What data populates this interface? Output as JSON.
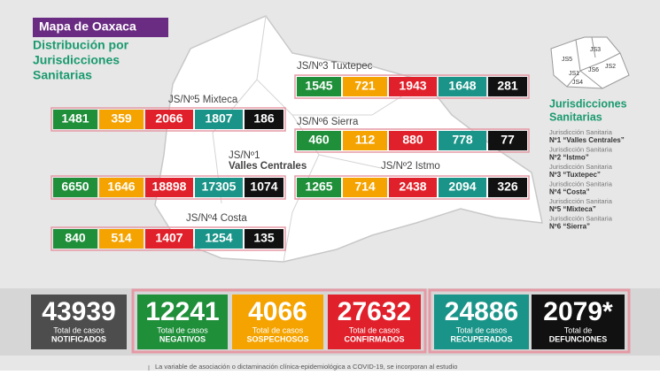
{
  "header": {
    "title": "Mapa de Oaxaca",
    "subtitle": [
      "Distribución por",
      "Jurisdicciones",
      "Sanitarias"
    ]
  },
  "jurisdictions": [
    {
      "label": [
        "JS/Nº3 Tuxtepec"
      ],
      "values": [
        1545,
        721,
        1943,
        1648,
        281
      ]
    },
    {
      "label": [
        "JS/Nº5 Mixteca"
      ],
      "values": [
        1481,
        359,
        2066,
        1807,
        186
      ]
    },
    {
      "label": [
        "JS/Nº6 Sierra"
      ],
      "values": [
        460,
        112,
        880,
        778,
        77
      ]
    },
    {
      "label": [
        "JS/Nº1",
        "Valles Centrales"
      ],
      "values": [
        6650,
        1646,
        18898,
        17305,
        1074
      ]
    },
    {
      "label": [
        "JS/Nº2 Istmo"
      ],
      "values": [
        1265,
        714,
        2438,
        2094,
        326
      ]
    },
    {
      "label": [
        "JS/Nº4 Costa"
      ],
      "values": [
        840,
        514,
        1407,
        1254,
        135
      ]
    }
  ],
  "inset_labels": [
    "JS1",
    "JS2",
    "JS3",
    "JS4",
    "JS5",
    "JS6"
  ],
  "legend": {
    "title": [
      "Jurisdicciones",
      "Sanitarias"
    ],
    "items": [
      {
        "prefix": "Jurisdicción Sanitaria",
        "name": "Nº1 “Valles Centrales”"
      },
      {
        "prefix": "Jurisdicción Sanitaria",
        "name": "Nº2 “Istmo”"
      },
      {
        "prefix": "Jurisdicción Sanitaria",
        "name": "Nº3 “Tuxtepec”"
      },
      {
        "prefix": "Jurisdicción Sanitaria",
        "name": "Nº4 “Costa”"
      },
      {
        "prefix": "Jurisdicción Sanitaria",
        "name": "Nº5 “Mixteca”"
      },
      {
        "prefix": "Jurisdicción Sanitaria",
        "name": "Nº6 “Sierra”"
      }
    ]
  },
  "totals": [
    {
      "value": 43939,
      "caption": "Total de casos",
      "label": "NOTIFICADOS"
    },
    {
      "value": 12241,
      "caption": "Total de casos",
      "label": "NEGATIVOS"
    },
    {
      "value": 4066,
      "caption": "Total de casos",
      "label": "SOSPECHOSOS"
    },
    {
      "value": 27632,
      "caption": "Total de casos",
      "label": "CONFIRMADOS"
    },
    {
      "value": 24886,
      "caption": "Total de casos",
      "label": "RECUPERADOS"
    },
    {
      "value": "2079*",
      "caption": "Total de",
      "label": "DEFUNCIONES"
    }
  ],
  "footnote": "La variable de asociación o dictaminación clínica-epidemiológica a COVID-19, se incorporan al estudio"
}
